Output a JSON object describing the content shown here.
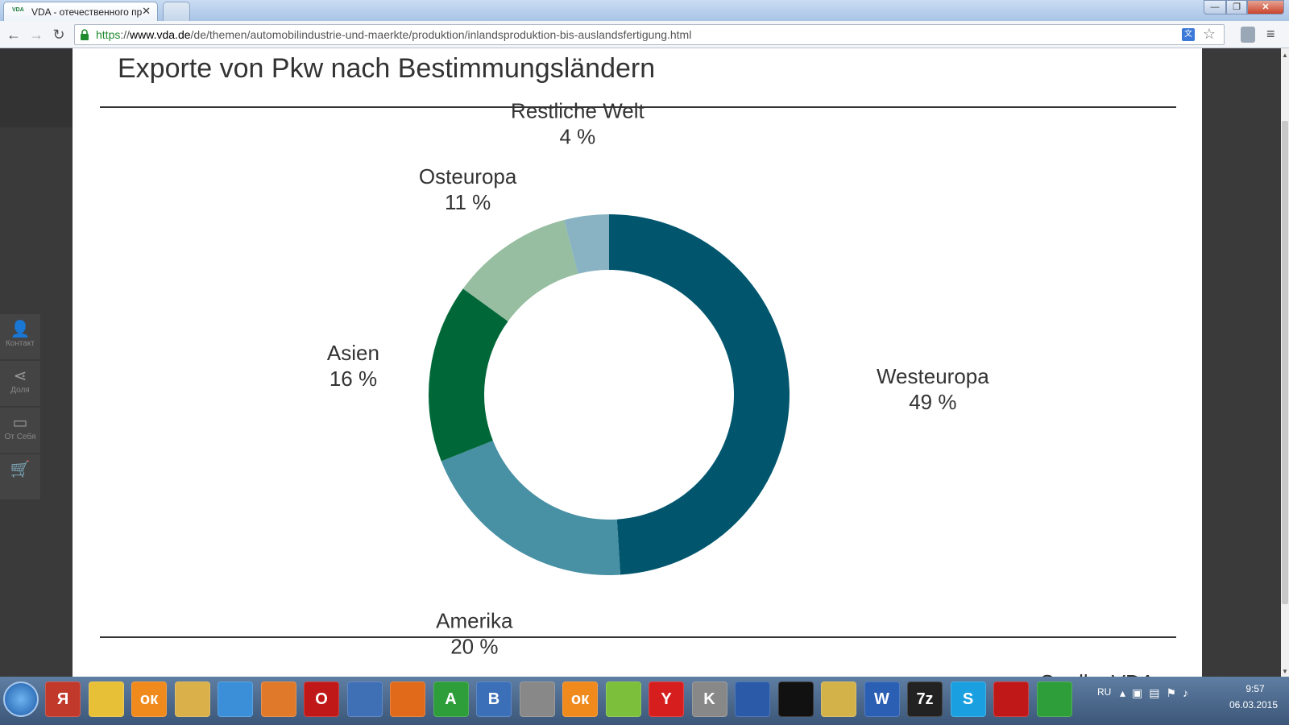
{
  "browser": {
    "tab_title": "VDA - отечественного пр",
    "tab_favicon": "VDA",
    "tab_close": "✕",
    "url_scheme": "https",
    "url_sep": "://",
    "url_host": "www.vda.de",
    "url_path": "/de/themen/automobilindustrie-und-maerkte/produktion/inlandsproduktion-bis-auslandsfertigung.html",
    "minimize": "—",
    "maximize": "❐",
    "close": "✕"
  },
  "page": {
    "title": "Exporte von Pkw nach Bestimmungsländern",
    "source": "Quelle: VDA"
  },
  "sidebar": {
    "items": [
      {
        "label": "Контакт",
        "icon": "person-icon"
      },
      {
        "label": "Доля",
        "icon": "share-icon"
      },
      {
        "label": "От Себя",
        "icon": "print-icon"
      },
      {
        "label": "",
        "icon": "cart-icon"
      }
    ]
  },
  "chart_data": {
    "type": "pie",
    "donut": true,
    "title": "Exporte von Pkw nach Bestimmungsländern",
    "categories": [
      "Westeuropa",
      "Amerika",
      "Asien",
      "Osteuropa",
      "Restliche Welt"
    ],
    "values": [
      49,
      20,
      16,
      11,
      4
    ],
    "value_labels": [
      "49 %",
      "20 %",
      "16 %",
      "11 %",
      "4 %"
    ],
    "colors": [
      "#01566e",
      "#4890a3",
      "#006838",
      "#97bea0",
      "#89b3c2"
    ],
    "source": "Quelle: VDA"
  },
  "taskbar": {
    "apps": [
      "Я",
      "",
      "ок",
      "",
      "",
      "",
      "O",
      "",
      "",
      "A",
      "B",
      "",
      "ок",
      "",
      "Y",
      "K",
      "",
      "",
      "",
      "W",
      "7z",
      "S",
      "",
      ""
    ],
    "lang": "RU",
    "time": "9:57",
    "date": "06.03.2015"
  }
}
